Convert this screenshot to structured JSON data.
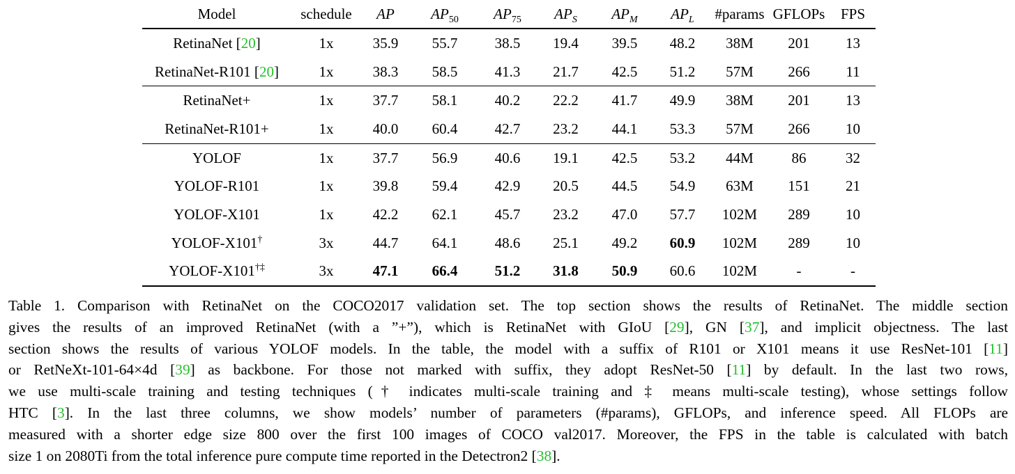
{
  "table": {
    "headers": [
      "Model",
      "schedule",
      "AP",
      "AP",
      "AP",
      "AP",
      "AP",
      "AP",
      "#params",
      "GFLOPs",
      "FPS"
    ],
    "header_subs": [
      "",
      "",
      "",
      "50",
      "75",
      "S",
      "M",
      "L",
      "",
      "",
      ""
    ],
    "rows": [
      [
        "RetinaNet [",
        "20",
        "]",
        "1x",
        "35.9",
        "55.7",
        "38.5",
        "19.4",
        "39.5",
        "48.2",
        "38M",
        "201",
        "13"
      ],
      [
        "RetinaNet-R101 [",
        "20",
        "]",
        "1x",
        "38.3",
        "58.5",
        "41.3",
        "21.7",
        "42.5",
        "51.2",
        "57M",
        "266",
        "11"
      ],
      [
        "RetinaNet+",
        "",
        "",
        "1x",
        "37.7",
        "58.1",
        "40.2",
        "22.2",
        "41.7",
        "49.9",
        "38M",
        "201",
        "13"
      ],
      [
        "RetinaNet-R101+",
        "",
        "",
        "1x",
        "40.0",
        "60.4",
        "42.7",
        "23.2",
        "44.1",
        "53.3",
        "57M",
        "266",
        "10"
      ],
      [
        "YOLOF",
        "",
        "",
        "1x",
        "37.7",
        "56.9",
        "40.6",
        "19.1",
        "42.5",
        "53.2",
        "44M",
        "86",
        "32"
      ],
      [
        "YOLOF-R101",
        "",
        "",
        "1x",
        "39.8",
        "59.4",
        "42.9",
        "20.5",
        "44.5",
        "54.9",
        "63M",
        "151",
        "21"
      ],
      [
        "YOLOF-X101",
        "",
        "",
        "1x",
        "42.2",
        "62.1",
        "45.7",
        "23.2",
        "47.0",
        "57.7",
        "102M",
        "289",
        "10"
      ],
      [
        "YOLOF-X101",
        "†",
        "",
        "3x",
        "44.7",
        "64.1",
        "48.6",
        "25.1",
        "49.2",
        "60.9",
        "102M",
        "289",
        "10"
      ],
      [
        "YOLOF-X101",
        "†‡",
        "",
        "3x",
        "47.1",
        "66.4",
        "51.2",
        "31.8",
        "50.9",
        "60.6",
        "102M",
        "-",
        "-"
      ]
    ]
  },
  "caption": {
    "l1a": "Table 1.  Comparison with RetinaNet on the COCO2017 validation set. The top section shows the results of RetinaNet. The middle section",
    "l2a": "gives the results of an improved RetinaNet (with a ”+”), which is RetinaNet with GIoU [",
    "c29": "29",
    "l2b": "], GN [",
    "c37": "37",
    "l2c": "], and implicit objectness. The last",
    "l3a": "section shows the results of various YOLOF models. In the table, the model with a suffix of R101 or X101 means it use ResNet-101 [",
    "c11a": "11",
    "l3b": "]",
    "l4a": "or RetNeXt-101-64×4d [",
    "c39": "39",
    "l4b": "] as backbone. For those not marked with suffix, they adopt ResNet-50 [",
    "c11b": "11",
    "l4c": "] by default. In the last two rows,",
    "l5": "we use multi-scale training and testing techniques († indicates multi-scale training and ‡ means multi-scale testing), whose settings follow",
    "l6a": "HTC [",
    "c3": "3",
    "l6b": "].  In the last three columns, we show models’ number of parameters (#params), GFLOPs, and inference speed.  All FLOPs are",
    "l7": "measured with a shorter edge size 800 over the first 100 images of COCO val2017. Moreover, the FPS in the table is calculated with batch",
    "l8a": "size 1 on 2080Ti from the total inference pure compute time reported in the Detectron2 [",
    "c38": "38",
    "l8b": "]."
  }
}
